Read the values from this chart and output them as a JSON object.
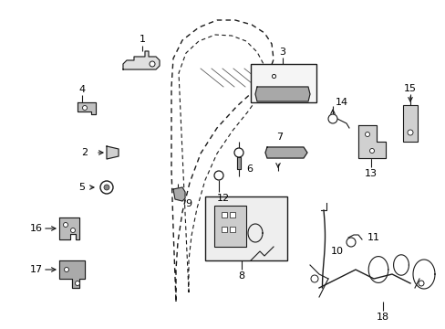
{
  "background_color": "#ffffff",
  "fig_width": 4.89,
  "fig_height": 3.6,
  "dpi": 100,
  "line_color": "#1a1a1a",
  "text_color": "#000000",
  "num_font_size": 7.5,
  "door": {
    "outer": {
      "x": [
        0.285,
        0.29,
        0.3,
        0.32,
        0.355,
        0.39,
        0.43,
        0.49,
        0.555,
        0.595,
        0.615,
        0.625,
        0.62,
        0.6,
        0.56,
        0.5,
        0.44,
        0.39,
        0.34,
        0.295,
        0.285
      ],
      "y": [
        0.49,
        0.56,
        0.64,
        0.72,
        0.79,
        0.84,
        0.87,
        0.89,
        0.895,
        0.89,
        0.875,
        0.84,
        0.79,
        0.72,
        0.64,
        0.56,
        0.49,
        0.42,
        0.35,
        0.35,
        0.49
      ]
    },
    "inner": {
      "x": [
        0.315,
        0.32,
        0.33,
        0.35,
        0.385,
        0.42,
        0.465,
        0.52,
        0.57,
        0.595,
        0.6,
        0.59,
        0.565,
        0.52,
        0.47,
        0.42,
        0.375,
        0.335,
        0.315
      ],
      "y": [
        0.49,
        0.545,
        0.61,
        0.68,
        0.74,
        0.785,
        0.815,
        0.835,
        0.845,
        0.835,
        0.81,
        0.775,
        0.715,
        0.645,
        0.58,
        0.52,
        0.46,
        0.4,
        0.49
      ]
    },
    "window_notch": {
      "x": [
        0.43,
        0.47,
        0.53,
        0.57,
        0.595,
        0.595,
        0.57,
        0.52,
        0.465,
        0.43
      ],
      "y": [
        0.87,
        0.87,
        0.88,
        0.88,
        0.865,
        0.845,
        0.83,
        0.845,
        0.825,
        0.87
      ]
    }
  }
}
